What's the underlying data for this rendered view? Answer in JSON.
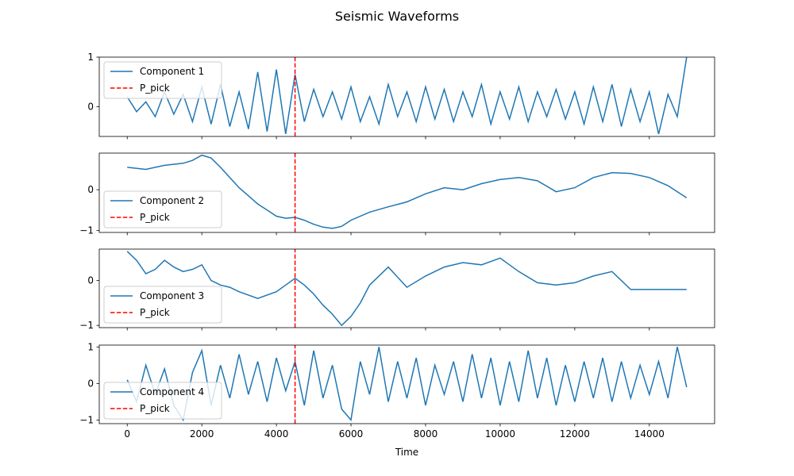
{
  "figure": {
    "title": "Seismic Waveforms"
  },
  "chart_data": [
    {
      "type": "line",
      "title": "",
      "xlabel": "",
      "ylabel": "",
      "xlim": [
        -750,
        15750
      ],
      "ylim": [
        -0.6,
        1.0
      ],
      "yticks": [
        0,
        1
      ],
      "ytick_labels": [
        "0",
        "1"
      ],
      "x_tick_labels_shown": false,
      "legend_location": "upper left",
      "series": [
        {
          "name": "Component 1",
          "color": "#1f77b4",
          "x": [
            0,
            250,
            500,
            750,
            1000,
            1250,
            1500,
            1750,
            2000,
            2250,
            2500,
            2750,
            3000,
            3250,
            3500,
            3750,
            4000,
            4250,
            4500,
            4750,
            5000,
            5250,
            5500,
            5750,
            6000,
            6250,
            6500,
            6750,
            7000,
            7250,
            7500,
            7750,
            8000,
            8250,
            8500,
            8750,
            9000,
            9250,
            9500,
            9750,
            10000,
            10250,
            10500,
            10750,
            11000,
            11250,
            11500,
            11750,
            12000,
            12250,
            12500,
            12750,
            13000,
            13250,
            13500,
            13750,
            14000,
            14250,
            14500,
            14750,
            15000
          ],
          "y": [
            0.2,
            -0.1,
            0.1,
            -0.2,
            0.3,
            -0.15,
            0.25,
            -0.3,
            0.4,
            -0.35,
            0.45,
            -0.4,
            0.3,
            -0.45,
            0.7,
            -0.5,
            0.75,
            -0.55,
            0.65,
            -0.3,
            0.35,
            -0.2,
            0.3,
            -0.25,
            0.4,
            -0.3,
            0.2,
            -0.35,
            0.45,
            -0.2,
            0.3,
            -0.3,
            0.4,
            -0.25,
            0.35,
            -0.3,
            0.3,
            -0.2,
            0.45,
            -0.35,
            0.3,
            -0.25,
            0.4,
            -0.3,
            0.3,
            -0.2,
            0.35,
            -0.25,
            0.3,
            -0.35,
            0.4,
            -0.3,
            0.45,
            -0.4,
            0.35,
            -0.3,
            0.3,
            -0.55,
            0.25,
            -0.2,
            1.0
          ]
        },
        {
          "name": "P_pick",
          "color": "#ff0000",
          "style": "dashed",
          "x": [
            4500,
            4500
          ],
          "y": [
            -0.6,
            1.0
          ]
        }
      ]
    },
    {
      "type": "line",
      "title": "",
      "xlabel": "",
      "ylabel": "",
      "xlim": [
        -750,
        15750
      ],
      "ylim": [
        -1.05,
        0.9
      ],
      "yticks": [
        -1,
        0
      ],
      "ytick_labels": [
        "−1",
        "0"
      ],
      "x_tick_labels_shown": false,
      "legend_location": "lower left",
      "series": [
        {
          "name": "Component 2",
          "color": "#1f77b4",
          "x": [
            0,
            500,
            1000,
            1500,
            1750,
            2000,
            2250,
            2500,
            2750,
            3000,
            3250,
            3500,
            3750,
            4000,
            4250,
            4500,
            4750,
            5000,
            5250,
            5500,
            5750,
            6000,
            6500,
            7000,
            7500,
            8000,
            8500,
            9000,
            9500,
            10000,
            10500,
            11000,
            11500,
            12000,
            12500,
            13000,
            13500,
            14000,
            14500,
            15000
          ],
          "y": [
            0.55,
            0.5,
            0.6,
            0.65,
            0.72,
            0.85,
            0.78,
            0.55,
            0.3,
            0.05,
            -0.15,
            -0.35,
            -0.5,
            -0.65,
            -0.7,
            -0.68,
            -0.75,
            -0.85,
            -0.92,
            -0.95,
            -0.9,
            -0.75,
            -0.55,
            -0.42,
            -0.3,
            -0.1,
            0.05,
            0.0,
            0.15,
            0.25,
            0.3,
            0.22,
            -0.05,
            0.05,
            0.3,
            0.42,
            0.4,
            0.3,
            0.1,
            -0.2
          ]
        },
        {
          "name": "P_pick",
          "color": "#ff0000",
          "style": "dashed",
          "x": [
            4500,
            4500
          ],
          "y": [
            -1.05,
            0.9
          ]
        }
      ]
    },
    {
      "type": "line",
      "title": "",
      "xlabel": "",
      "ylabel": "",
      "xlim": [
        -750,
        15750
      ],
      "ylim": [
        -1.05,
        0.7
      ],
      "yticks": [
        -1,
        0
      ],
      "ytick_labels": [
        "−1",
        "0"
      ],
      "x_tick_labels_shown": false,
      "legend_location": "lower left",
      "series": [
        {
          "name": "Component 3",
          "color": "#1f77b4",
          "x": [
            0,
            250,
            500,
            750,
            1000,
            1250,
            1500,
            1750,
            2000,
            2250,
            2500,
            2750,
            3000,
            3500,
            4000,
            4250,
            4500,
            4750,
            5000,
            5250,
            5500,
            5750,
            6000,
            6250,
            6500,
            6750,
            7000,
            7500,
            8000,
            8500,
            9000,
            9500,
            10000,
            10500,
            11000,
            11500,
            12000,
            12500,
            13000,
            13500,
            14000,
            14500,
            15000
          ],
          "y": [
            0.65,
            0.45,
            0.15,
            0.25,
            0.45,
            0.3,
            0.2,
            0.25,
            0.35,
            0.0,
            -0.1,
            -0.15,
            -0.25,
            -0.4,
            -0.25,
            -0.1,
            0.05,
            -0.1,
            -0.3,
            -0.55,
            -0.75,
            -1.0,
            -0.8,
            -0.5,
            -0.1,
            0.1,
            0.3,
            -0.15,
            0.1,
            0.3,
            0.4,
            0.35,
            0.5,
            0.2,
            -0.05,
            -0.1,
            -0.05,
            0.1,
            0.2,
            -0.2,
            -0.2,
            -0.2,
            -0.2
          ]
        },
        {
          "name": "P_pick",
          "color": "#ff0000",
          "style": "dashed",
          "x": [
            4500,
            4500
          ],
          "y": [
            -1.05,
            0.7
          ]
        }
      ]
    },
    {
      "type": "line",
      "title": "",
      "xlabel": "Time",
      "ylabel": "",
      "xlim": [
        -750,
        15750
      ],
      "ylim": [
        -1.1,
        1.05
      ],
      "yticks": [
        -1,
        0,
        1
      ],
      "ytick_labels": [
        "−1",
        "0",
        "1"
      ],
      "xticks": [
        0,
        2000,
        4000,
        6000,
        8000,
        10000,
        12000,
        14000
      ],
      "xtick_labels": [
        "0",
        "2000",
        "4000",
        "6000",
        "8000",
        "10000",
        "12000",
        "14000"
      ],
      "legend_location": "lower left",
      "series": [
        {
          "name": "Component 4",
          "color": "#1f77b4",
          "x": [
            0,
            250,
            500,
            750,
            1000,
            1250,
            1500,
            1750,
            2000,
            2250,
            2500,
            2750,
            3000,
            3250,
            3500,
            3750,
            4000,
            4250,
            4500,
            4750,
            5000,
            5250,
            5500,
            5750,
            6000,
            6250,
            6500,
            6750,
            7000,
            7250,
            7500,
            7750,
            8000,
            8250,
            8500,
            8750,
            9000,
            9250,
            9500,
            9750,
            10000,
            10250,
            10500,
            10750,
            11000,
            11250,
            11500,
            11750,
            12000,
            12250,
            12500,
            12750,
            13000,
            13250,
            13500,
            13750,
            14000,
            14250,
            14500,
            14750,
            15000
          ],
          "y": [
            0.1,
            -0.5,
            0.5,
            -0.3,
            0.4,
            -0.6,
            -1.0,
            0.3,
            0.9,
            -0.6,
            0.5,
            -0.4,
            0.8,
            -0.3,
            0.6,
            -0.5,
            0.7,
            -0.2,
            0.6,
            -0.6,
            0.9,
            -0.4,
            0.5,
            -0.7,
            -1.0,
            0.6,
            -0.3,
            1.0,
            -0.5,
            0.6,
            -0.4,
            0.7,
            -0.6,
            0.5,
            -0.3,
            0.6,
            -0.5,
            0.8,
            -0.4,
            0.7,
            -0.6,
            0.6,
            -0.5,
            0.9,
            -0.4,
            0.7,
            -0.6,
            0.5,
            -0.5,
            0.6,
            -0.4,
            0.7,
            -0.5,
            0.6,
            -0.4,
            0.5,
            -0.3,
            0.6,
            -0.4,
            1.0,
            -0.1
          ]
        },
        {
          "name": "P_pick",
          "color": "#ff0000",
          "style": "dashed",
          "x": [
            4500,
            4500
          ],
          "y": [
            -1.1,
            1.05
          ]
        }
      ]
    }
  ]
}
